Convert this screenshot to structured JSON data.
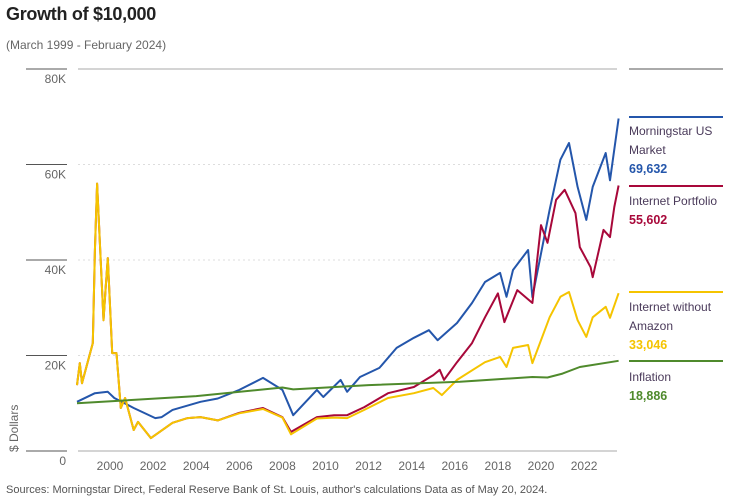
{
  "title": "Growth of $10,000",
  "subtitle": "(March 1999 - February 2024)",
  "source": "Sources: Morningstar Direct, Federal Reserve Bank of St. Louis, author's calculations Data as of May 20, 2024.",
  "chart_data": {
    "type": "line",
    "title": "Growth of $10,000",
    "ylabel": "$ Dollars",
    "xlabel": "",
    "ylim": [
      0,
      80000
    ],
    "yticks": [
      "0",
      "20K",
      "40K",
      "60K",
      "80K"
    ],
    "ytick_values": [
      0,
      20000,
      40000,
      60000,
      80000
    ],
    "xticks": [
      "2000",
      "2002",
      "2004",
      "2006",
      "2008",
      "2010",
      "2012",
      "2014",
      "2016",
      "2018",
      "2020",
      "2022"
    ],
    "xtick_values": [
      2000,
      2002,
      2004,
      2006,
      2008,
      2010,
      2012,
      2014,
      2016,
      2018,
      2020,
      2022
    ],
    "grid": "horizontal dotted",
    "legend": "right",
    "series": [
      {
        "name": "Morningstar US Market",
        "color": "#2456ab",
        "end_label": "69,632",
        "points": [
          [
            1998.47,
            10300
          ],
          [
            1999.3,
            12100
          ],
          [
            1999.9,
            12400
          ],
          [
            2000.2,
            11100
          ],
          [
            2001.1,
            9000
          ],
          [
            2002.1,
            6900
          ],
          [
            2002.4,
            7100
          ],
          [
            2002.9,
            8600
          ],
          [
            2004.2,
            10300
          ],
          [
            2005.0,
            11000
          ],
          [
            2006.0,
            12800
          ],
          [
            2007.1,
            15300
          ],
          [
            2008.0,
            12800
          ],
          [
            2008.5,
            7500
          ],
          [
            2009.6,
            12800
          ],
          [
            2009.9,
            11300
          ],
          [
            2010.7,
            14900
          ],
          [
            2011.0,
            12400
          ],
          [
            2011.6,
            15500
          ],
          [
            2012.5,
            17400
          ],
          [
            2013.3,
            21600
          ],
          [
            2014.1,
            23700
          ],
          [
            2014.8,
            25300
          ],
          [
            2015.2,
            23200
          ],
          [
            2016.1,
            26800
          ],
          [
            2016.8,
            31000
          ],
          [
            2017.4,
            35400
          ],
          [
            2018.1,
            37300
          ],
          [
            2018.4,
            32300
          ],
          [
            2018.7,
            37900
          ],
          [
            2019.4,
            42100
          ],
          [
            2019.6,
            32200
          ],
          [
            2020.4,
            50500
          ],
          [
            2020.9,
            61000
          ],
          [
            2021.3,
            64500
          ],
          [
            2021.7,
            55300
          ],
          [
            2022.1,
            48400
          ],
          [
            2022.4,
            55300
          ],
          [
            2023.0,
            62400
          ],
          [
            2023.2,
            56700
          ],
          [
            2023.6,
            69632
          ]
        ]
      },
      {
        "name": "Internet Portfolio",
        "color": "#a8083a",
        "end_label": "55,602",
        "points": [
          [
            1998.47,
            13800
          ],
          [
            1998.6,
            18400
          ],
          [
            1998.7,
            14200
          ],
          [
            1999.2,
            22600
          ],
          [
            1999.3,
            42000
          ],
          [
            1999.4,
            56000
          ],
          [
            1999.7,
            27400
          ],
          [
            1999.8,
            34300
          ],
          [
            1999.9,
            40400
          ],
          [
            2000.1,
            20500
          ],
          [
            2000.3,
            20500
          ],
          [
            2000.5,
            9000
          ],
          [
            2000.7,
            11100
          ],
          [
            2001.1,
            4400
          ],
          [
            2001.3,
            6100
          ],
          [
            2001.9,
            2700
          ],
          [
            2002.3,
            4000
          ],
          [
            2002.9,
            5900
          ],
          [
            2003.6,
            6900
          ],
          [
            2004.2,
            7100
          ],
          [
            2005.0,
            6400
          ],
          [
            2006.0,
            8000
          ],
          [
            2007.1,
            9000
          ],
          [
            2008.0,
            7100
          ],
          [
            2008.4,
            4000
          ],
          [
            2009.6,
            7100
          ],
          [
            2010.4,
            7500
          ],
          [
            2011.0,
            7500
          ],
          [
            2011.8,
            9200
          ],
          [
            2012.9,
            12100
          ],
          [
            2014.1,
            13400
          ],
          [
            2015.0,
            15900
          ],
          [
            2015.3,
            17000
          ],
          [
            2015.5,
            14900
          ],
          [
            2016.1,
            18600
          ],
          [
            2016.8,
            22600
          ],
          [
            2017.4,
            28000
          ],
          [
            2018.0,
            33000
          ],
          [
            2018.3,
            27000
          ],
          [
            2018.9,
            33700
          ],
          [
            2019.6,
            31000
          ],
          [
            2020.0,
            47300
          ],
          [
            2020.3,
            43600
          ],
          [
            2020.7,
            52600
          ],
          [
            2021.1,
            54700
          ],
          [
            2021.6,
            49800
          ],
          [
            2021.8,
            42700
          ],
          [
            2022.3,
            38500
          ],
          [
            2022.4,
            36400
          ],
          [
            2022.9,
            46300
          ],
          [
            2023.2,
            44800
          ],
          [
            2023.4,
            51100
          ],
          [
            2023.6,
            55602
          ]
        ]
      },
      {
        "name": "Internet without Amazon",
        "color": "#f5c400",
        "end_label": "33,046",
        "points": [
          [
            1998.47,
            13800
          ],
          [
            1998.6,
            18400
          ],
          [
            1998.7,
            14200
          ],
          [
            1999.2,
            22600
          ],
          [
            1999.3,
            42000
          ],
          [
            1999.4,
            56000
          ],
          [
            1999.7,
            27400
          ],
          [
            1999.8,
            34300
          ],
          [
            1999.9,
            40400
          ],
          [
            2000.1,
            20500
          ],
          [
            2000.3,
            20500
          ],
          [
            2000.5,
            9000
          ],
          [
            2000.7,
            11100
          ],
          [
            2001.1,
            4400
          ],
          [
            2001.3,
            6100
          ],
          [
            2001.9,
            2700
          ],
          [
            2002.3,
            4000
          ],
          [
            2002.9,
            5900
          ],
          [
            2003.6,
            6900
          ],
          [
            2004.2,
            7100
          ],
          [
            2005.0,
            6400
          ],
          [
            2006.0,
            7900
          ],
          [
            2007.1,
            8800
          ],
          [
            2008.0,
            7000
          ],
          [
            2008.4,
            3500
          ],
          [
            2009.6,
            6800
          ],
          [
            2010.4,
            7000
          ],
          [
            2011.0,
            6900
          ],
          [
            2011.8,
            8600
          ],
          [
            2012.9,
            11100
          ],
          [
            2014.1,
            12100
          ],
          [
            2015.0,
            13200
          ],
          [
            2015.4,
            11700
          ],
          [
            2016.1,
            14900
          ],
          [
            2017.4,
            18600
          ],
          [
            2018.1,
            19700
          ],
          [
            2018.4,
            17600
          ],
          [
            2018.7,
            21600
          ],
          [
            2019.4,
            22200
          ],
          [
            2019.6,
            18400
          ],
          [
            2020.4,
            28000
          ],
          [
            2020.9,
            32300
          ],
          [
            2021.3,
            33300
          ],
          [
            2021.7,
            27400
          ],
          [
            2022.1,
            23900
          ],
          [
            2022.4,
            28000
          ],
          [
            2023.0,
            30200
          ],
          [
            2023.2,
            27900
          ],
          [
            2023.6,
            33046
          ]
        ]
      },
      {
        "name": "Inflation",
        "color": "#4f8a2c",
        "end_label": "18,886",
        "points": [
          [
            1998.47,
            10000
          ],
          [
            2004.0,
            11500
          ],
          [
            2008.0,
            13300
          ],
          [
            2008.5,
            12900
          ],
          [
            2012.0,
            13800
          ],
          [
            2016.24,
            14500
          ],
          [
            2019.6,
            15500
          ],
          [
            2020.3,
            15400
          ],
          [
            2021.0,
            16200
          ],
          [
            2021.8,
            17600
          ],
          [
            2023.6,
            18886
          ]
        ]
      }
    ]
  },
  "legend": [
    {
      "label": "Morningstar US Market",
      "value": "69,632",
      "color": "#2456ab"
    },
    {
      "label": "Internet Portfolio",
      "value": "55,602",
      "color": "#a8083a"
    },
    {
      "label": "Internet without Amazon",
      "value": "33,046",
      "color": "#f5c400"
    },
    {
      "label": "Inflation",
      "value": "18,886",
      "color": "#4f8a2c"
    }
  ]
}
